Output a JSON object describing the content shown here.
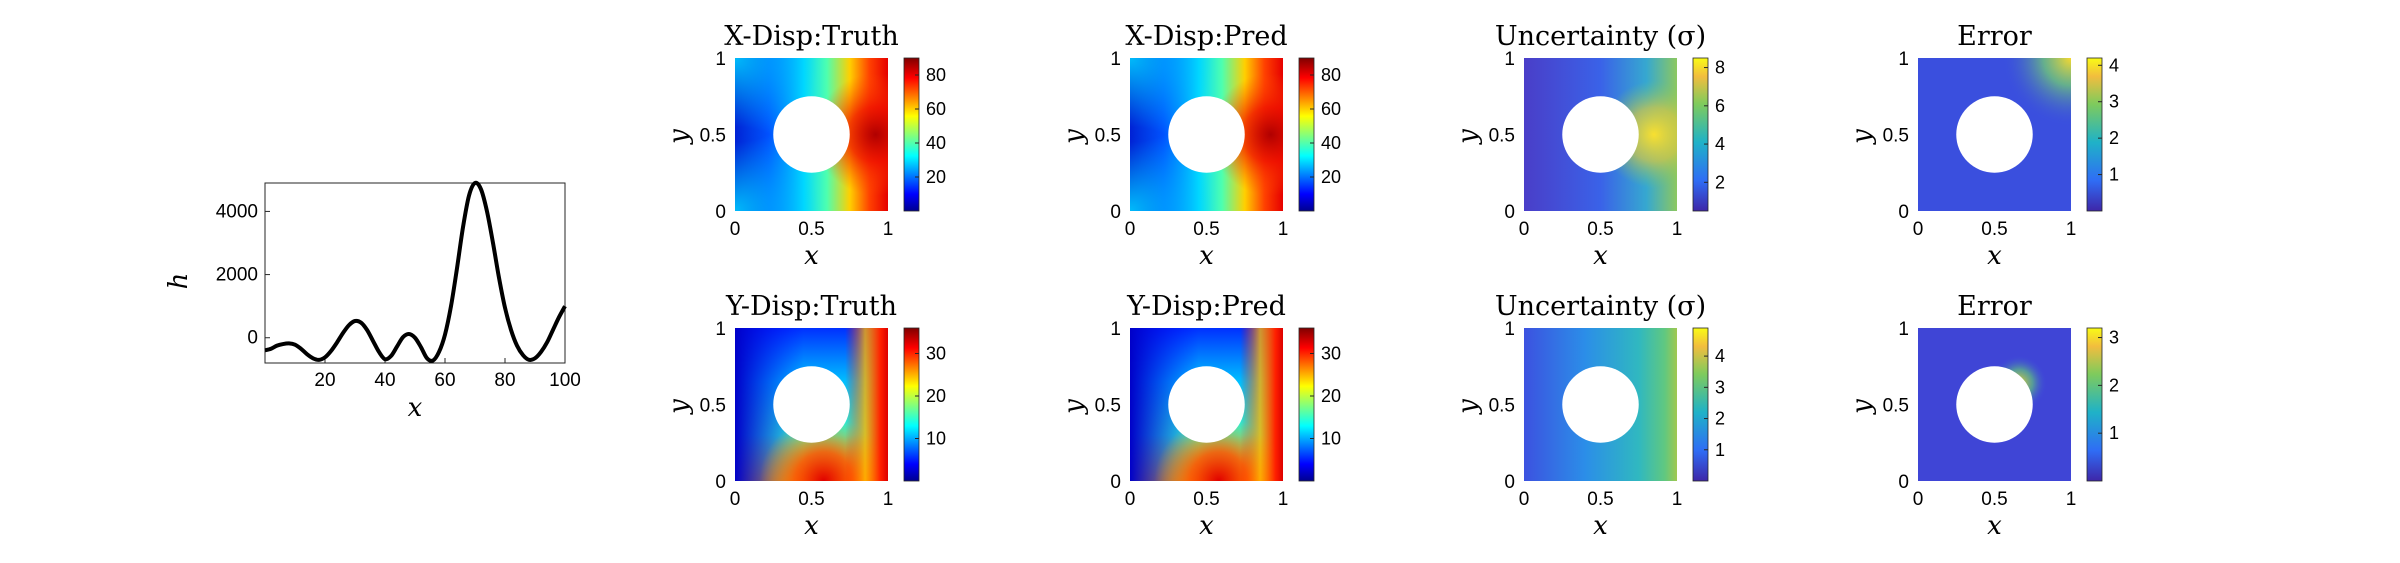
{
  "chart_data": [
    {
      "type": "line",
      "title": "",
      "xlabel": "x",
      "ylabel": "h",
      "xlim": [
        0,
        100
      ],
      "ylim": [
        -800,
        4900
      ],
      "xticks": [
        20,
        40,
        60,
        80,
        100
      ],
      "yticks": [
        0,
        2000,
        4000
      ],
      "xticklabels": [
        "20",
        "40",
        "60",
        "80",
        "100"
      ],
      "yticklabels": [
        "0",
        "2000",
        "4000"
      ],
      "series": [
        {
          "x": [
            0,
            2,
            4,
            6,
            8,
            10,
            12,
            14,
            16,
            18,
            20,
            22,
            24,
            26,
            28,
            30,
            32,
            34,
            36,
            38,
            40,
            42,
            44,
            46,
            48,
            50,
            52,
            54,
            56,
            58,
            60,
            62,
            64,
            66,
            68,
            70,
            72,
            74,
            76,
            78,
            80,
            82,
            84,
            86,
            88,
            90,
            92,
            94,
            96,
            98,
            100
          ],
          "values": [
            -400,
            -350,
            -250,
            -200,
            -180,
            -220,
            -350,
            -520,
            -650,
            -700,
            -620,
            -420,
            -150,
            150,
            400,
            530,
            480,
            250,
            -100,
            -450,
            -680,
            -580,
            -280,
            20,
            120,
            0,
            -300,
            -650,
            -720,
            -450,
            100,
            1000,
            2200,
            3500,
            4500,
            4900,
            4700,
            4000,
            3000,
            1900,
            950,
            250,
            -250,
            -550,
            -700,
            -650,
            -450,
            -150,
            250,
            650,
            1000
          ]
        }
      ],
      "color": "#000000"
    },
    {
      "type": "heatmap",
      "title": "X-Disp:Truth",
      "xlabel": "x",
      "ylabel": "y",
      "xlim": [
        0,
        1
      ],
      "ylim": [
        0,
        1
      ],
      "xticklabels": [
        "0",
        "0.5",
        "1"
      ],
      "yticklabels": [
        "0",
        "0.5",
        "1"
      ],
      "hole": {
        "center": [
          0.5,
          0.5
        ],
        "radius": 0.25
      },
      "colorbar": {
        "ticks": [
          "20",
          "40",
          "60",
          "80"
        ],
        "range": [
          0,
          90
        ]
      },
      "colormap": "jet",
      "field": "Displacement increasing from ~0 at left edge to ~85 near the right edge behind the hole"
    },
    {
      "type": "heatmap",
      "title": "X-Disp:Pred",
      "xlabel": "x",
      "ylabel": "y",
      "xlim": [
        0,
        1
      ],
      "ylim": [
        0,
        1
      ],
      "xticklabels": [
        "0",
        "0.5",
        "1"
      ],
      "yticklabels": [
        "0",
        "0.5",
        "1"
      ],
      "hole": {
        "center": [
          0.5,
          0.5
        ],
        "radius": 0.25
      },
      "colorbar": {
        "ticks": [
          "20",
          "40",
          "60",
          "80"
        ],
        "range": [
          0,
          90
        ]
      },
      "colormap": "jet"
    },
    {
      "type": "heatmap",
      "title": "Uncertainty (σ)",
      "xlabel": "x",
      "ylabel": "y",
      "xlim": [
        0,
        1
      ],
      "ylim": [
        0,
        1
      ],
      "xticklabels": [
        "0",
        "0.5",
        "1"
      ],
      "yticklabels": [
        "0",
        "0.5",
        "1"
      ],
      "hole": {
        "center": [
          0.5,
          0.5
        ],
        "radius": 0.25
      },
      "colorbar": {
        "ticks": [
          "2",
          "4",
          "6",
          "8"
        ],
        "range": [
          0.5,
          8.5
        ]
      },
      "colormap": "parula"
    },
    {
      "type": "heatmap",
      "title": "Error",
      "xlabel": "x",
      "ylabel": "y",
      "xlim": [
        0,
        1
      ],
      "ylim": [
        0,
        1
      ],
      "xticklabels": [
        "0",
        "0.5",
        "1"
      ],
      "yticklabels": [
        "0",
        "0.5",
        "1"
      ],
      "hole": {
        "center": [
          0.5,
          0.5
        ],
        "radius": 0.25
      },
      "colorbar": {
        "ticks": [
          "1",
          "2",
          "3",
          "4"
        ],
        "range": [
          0,
          4.2
        ]
      },
      "colormap": "parula"
    },
    {
      "type": "heatmap",
      "title": "Y-Disp:Truth",
      "xlabel": "x",
      "ylabel": "y",
      "xlim": [
        0,
        1
      ],
      "ylim": [
        0,
        1
      ],
      "xticklabels": [
        "0",
        "0.5",
        "1"
      ],
      "yticklabels": [
        "0",
        "0.5",
        "1"
      ],
      "hole": {
        "center": [
          0.5,
          0.5
        ],
        "radius": 0.25
      },
      "colorbar": {
        "ticks": [
          "10",
          "20",
          "30"
        ],
        "range": [
          0,
          36
        ]
      },
      "colormap": "jet"
    },
    {
      "type": "heatmap",
      "title": "Y-Disp:Pred",
      "xlabel": "x",
      "ylabel": "y",
      "xlim": [
        0,
        1
      ],
      "ylim": [
        0,
        1
      ],
      "xticklabels": [
        "0",
        "0.5",
        "1"
      ],
      "yticklabels": [
        "0",
        "0.5",
        "1"
      ],
      "hole": {
        "center": [
          0.5,
          0.5
        ],
        "radius": 0.25
      },
      "colorbar": {
        "ticks": [
          "10",
          "20",
          "30"
        ],
        "range": [
          0,
          36
        ]
      },
      "colormap": "jet"
    },
    {
      "type": "heatmap",
      "title": "Uncertainty (σ)",
      "xlabel": "x",
      "ylabel": "y",
      "xlim": [
        0,
        1
      ],
      "ylim": [
        0,
        1
      ],
      "xticklabels": [
        "0",
        "0.5",
        "1"
      ],
      "yticklabels": [
        "0",
        "0.5",
        "1"
      ],
      "hole": {
        "center": [
          0.5,
          0.5
        ],
        "radius": 0.25
      },
      "colorbar": {
        "ticks": [
          "1",
          "2",
          "3",
          "4"
        ],
        "range": [
          0,
          4.9
        ]
      },
      "colormap": "parula"
    },
    {
      "type": "heatmap",
      "title": "Error",
      "xlabel": "x",
      "ylabel": "y",
      "xlim": [
        0,
        1
      ],
      "ylim": [
        0,
        1
      ],
      "xticklabels": [
        "0",
        "0.5",
        "1"
      ],
      "yticklabels": [
        "0",
        "0.5",
        "1"
      ],
      "hole": {
        "center": [
          0.5,
          0.5
        ],
        "radius": 0.25
      },
      "colorbar": {
        "ticks": [
          "1",
          "2",
          "3"
        ],
        "range": [
          0,
          3.2
        ]
      },
      "colormap": "parula"
    }
  ]
}
